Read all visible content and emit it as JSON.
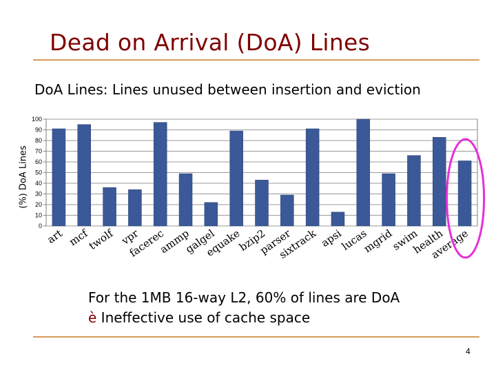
{
  "slide": {
    "title": "Dead on Arrival (DoA) Lines",
    "subtitle": "DoA Lines: Lines unused between insertion and eviction",
    "note_line1": "For the 1MB 16-way L2, 60% of lines are DoA",
    "note_arrow": "è",
    "note_line2": "Ineffective use of cache space",
    "page_number": "4"
  },
  "colors": {
    "title": "#800000",
    "rule": "#d49a5a",
    "bar": "#3b5998",
    "highlight": "#e62fd9"
  },
  "chart_data": {
    "type": "bar",
    "ylabel": "(%) DoA Lines",
    "ylim": [
      0,
      100
    ],
    "yticks": [
      0,
      10,
      20,
      30,
      40,
      50,
      60,
      70,
      80,
      90,
      100
    ],
    "grid": true,
    "categories": [
      "art",
      "mcf",
      "twolf",
      "vpr",
      "facerec",
      "ammp",
      "galgel",
      "equake",
      "bzip2",
      "parser",
      "sixtrack",
      "apsi",
      "lucas",
      "mgrid",
      "swim",
      "health",
      "average"
    ],
    "values": [
      91,
      95,
      36,
      34,
      97,
      49,
      22,
      89,
      43,
      29,
      91,
      13,
      100,
      49,
      66,
      83,
      61
    ],
    "highlighted": "average"
  }
}
